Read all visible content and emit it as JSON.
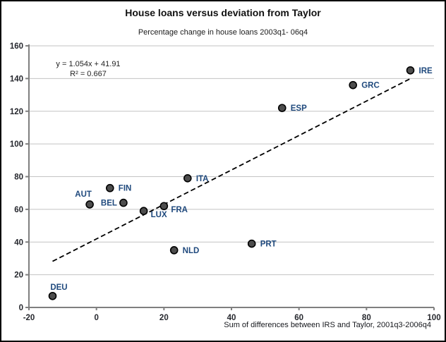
{
  "chart_data": {
    "type": "scatter",
    "title": "House loans versus deviation from Taylor",
    "subtitle": "Percentage change in house loans 2003q1- 06q4",
    "xlabel": "Sum of differences between IRS and Taylor, 2001q3-2006q4",
    "ylabel": "",
    "xlim": [
      -20,
      100
    ],
    "ylim": [
      0,
      160
    ],
    "xticks": [
      -20,
      0,
      20,
      40,
      60,
      80,
      100
    ],
    "yticks": [
      0,
      20,
      40,
      60,
      80,
      100,
      120,
      140,
      160
    ],
    "grid": "horizontal",
    "legend": "none",
    "points": [
      {
        "label": "DEU",
        "x": -13,
        "y": 7,
        "label_pos": "above"
      },
      {
        "label": "AUT",
        "x": -2,
        "y": 63,
        "label_pos": "above-left"
      },
      {
        "label": "FIN",
        "x": 4,
        "y": 73,
        "label_pos": "right"
      },
      {
        "label": "BEL",
        "x": 8,
        "y": 64,
        "label_pos": "left"
      },
      {
        "label": "LUX",
        "x": 14,
        "y": 59,
        "label_pos": "right-below"
      },
      {
        "label": "FRA",
        "x": 20,
        "y": 62,
        "label_pos": "right-below"
      },
      {
        "label": "ITA",
        "x": 27,
        "y": 79,
        "label_pos": "right"
      },
      {
        "label": "NLD",
        "x": 23,
        "y": 35,
        "label_pos": "right"
      },
      {
        "label": "PRT",
        "x": 46,
        "y": 39,
        "label_pos": "right"
      },
      {
        "label": "ESP",
        "x": 55,
        "y": 122,
        "label_pos": "right"
      },
      {
        "label": "GRC",
        "x": 76,
        "y": 136,
        "label_pos": "right"
      },
      {
        "label": "IRE",
        "x": 93,
        "y": 145,
        "label_pos": "right"
      }
    ],
    "trendline": {
      "slope": 1.054,
      "intercept": 41.91,
      "r2": 0.667,
      "x_start": -13,
      "x_end": 93,
      "style": "dashed",
      "color": "#000000"
    },
    "annotation": {
      "line1": "y = 1.054x + 41.91",
      "line2": "R² = 0.667"
    },
    "colors": {
      "marker_fill": "#4d4d4d",
      "marker_stroke": "#000000",
      "gridline": "#c3c3c3",
      "axis": "#7f7f7f",
      "point_label_text": "#1F497D",
      "tick_text": "#26282e"
    }
  }
}
